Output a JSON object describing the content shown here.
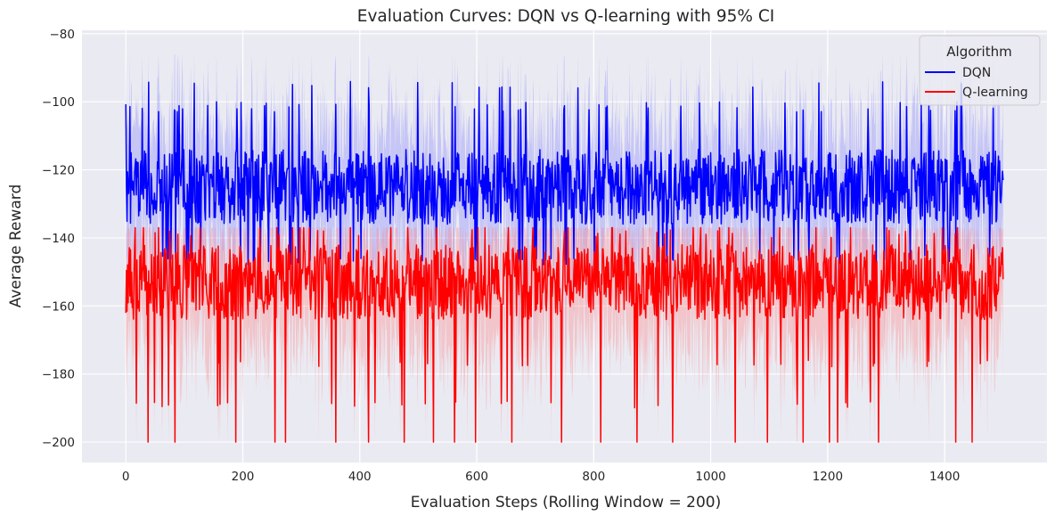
{
  "chart_data": {
    "type": "line",
    "title": "Evaluation Curves: DQN vs Q-learning with 95% CI",
    "xlabel": "Evaluation Steps (Rolling Window = 200)",
    "ylabel": "Average Reward",
    "xlim": [
      -75,
      1575
    ],
    "ylim": [
      -206,
      -79
    ],
    "xticks": [
      0,
      200,
      400,
      600,
      800,
      1000,
      1200,
      1400
    ],
    "yticks": [
      -200,
      -180,
      -160,
      -140,
      -120,
      -100,
      -80
    ],
    "grid": true,
    "legend": {
      "title": "Algorithm",
      "placement": "top-right"
    },
    "x_range": [
      0,
      1500
    ],
    "series": [
      {
        "name": "DQN",
        "color": "#0000ff",
        "ci_color": "#8080ff",
        "mean_center": -125,
        "mean_spread": 11,
        "peak_values": [
          -96,
          -102,
          -103
        ],
        "trough_values": [
          -145,
          -146
        ],
        "ci_upper_max": -86,
        "ci_lower_min": -191
      },
      {
        "name": "Q-learning",
        "color": "#ff0000",
        "ci_color": "#ff8080",
        "mean_center": -153,
        "mean_spread": 11,
        "peak_values": [
          -137,
          -138,
          -140
        ],
        "trough_values": [
          -176,
          -188,
          -200
        ],
        "ci_upper_max": -137,
        "ci_lower_min": -200
      }
    ]
  }
}
